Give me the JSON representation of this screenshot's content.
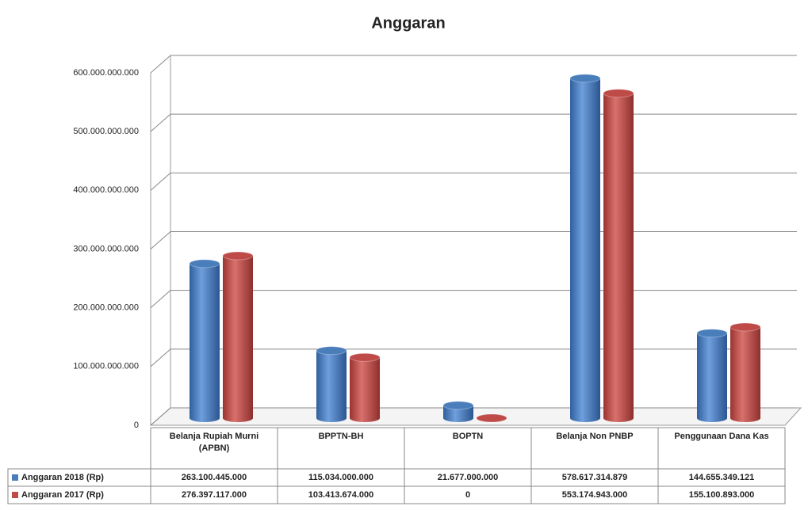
{
  "chart_data": {
    "type": "bar",
    "title": "Anggaran",
    "categories": [
      "Belanja Rupiah Murni (APBN)",
      "BPPTN-BH",
      "BOPTN",
      "Belanja Non PNBP",
      "Penggunaan Dana Kas"
    ],
    "series": [
      {
        "name": "Anggaran 2018 (Rp)",
        "color": "#4a7ebb",
        "values": [
          263100445000,
          115034000000,
          21677000000,
          578617314879,
          144655349121
        ],
        "value_labels": [
          "263.100.445.000",
          "115.034.000.000",
          "21.677.000.000",
          "578.617.314.879",
          "144.655.349.121"
        ]
      },
      {
        "name": "Anggaran 2017 (Rp)",
        "color": "#be4b48",
        "values": [
          276397117000,
          103413674000,
          0,
          553174943000,
          155100893000
        ],
        "value_labels": [
          "276.397.117.000",
          "103.413.674.000",
          "0",
          "553.174.943.000",
          "155.100.893.000"
        ]
      }
    ],
    "ylim": [
      0,
      600000000000
    ],
    "yticks": [
      0,
      {
        "value": 100000000000,
        "label": "100.000.000.000"
      },
      {
        "value": 200000000000,
        "label": "200.000.000.000"
      },
      {
        "value": 300000000000,
        "label": "300.000.000.000"
      },
      {
        "value": 400000000000,
        "label": "400.000.000.000"
      },
      {
        "value": 500000000000,
        "label": "500.000.000.000"
      },
      {
        "value": 600000000000,
        "label": "600.000.000.000"
      }
    ],
    "grid": true
  }
}
